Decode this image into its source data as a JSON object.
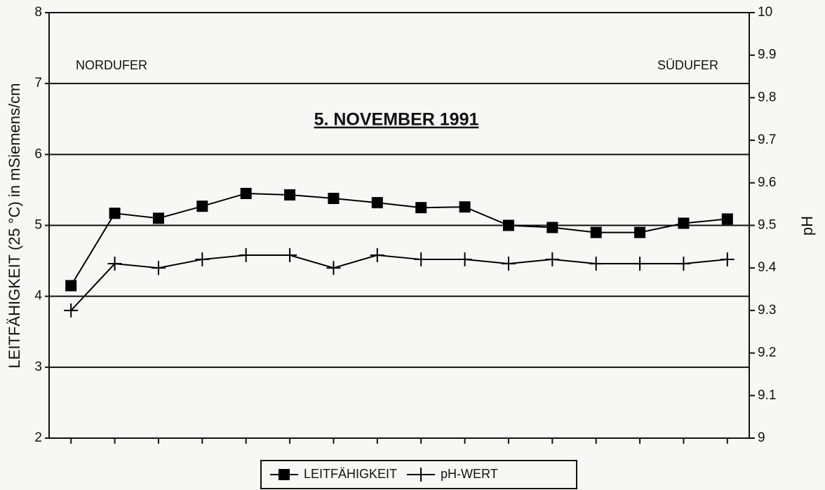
{
  "chart_data": {
    "type": "line",
    "title": "5. NOVEMBER 1991",
    "annotations": [
      "NORDUFER",
      "SÜDUFER"
    ],
    "ylabel": "LEITFÄHIGKEIT (25 °C) in mSiemens/cm",
    "y2label": "pH",
    "categories": [
      null,
      null,
      null,
      null,
      null,
      null,
      null,
      null,
      null,
      null,
      null,
      null,
      null,
      null,
      null,
      null
    ],
    "series": [
      {
        "name": "LEITFÄHIGKEIT",
        "color": "#000000",
        "marker": "square",
        "values": [
          4.15,
          5.17,
          5.1,
          5.27,
          5.45,
          5.43,
          5.38,
          5.32,
          5.25,
          5.26,
          5.0,
          4.97,
          4.9,
          4.9,
          5.03,
          5.09
        ]
      },
      {
        "name": "pH-WERT",
        "color": "#000000",
        "marker": "plus",
        "axis": "y2",
        "values": [
          9.3,
          9.41,
          9.4,
          9.42,
          9.43,
          9.43,
          9.4,
          9.43,
          9.42,
          9.42,
          9.41,
          9.42,
          9.41,
          9.41,
          9.41,
          9.42
        ]
      }
    ],
    "ylim": [
      2,
      8
    ],
    "yticks": [
      2,
      3,
      4,
      5,
      6,
      7,
      8
    ],
    "y2lim": [
      9,
      10
    ],
    "y2ticks": [
      9,
      9.1,
      9.2,
      9.3,
      9.4,
      9.5,
      9.6,
      9.7,
      9.8,
      9.9,
      10
    ],
    "grid": true,
    "legend": "bottom"
  }
}
